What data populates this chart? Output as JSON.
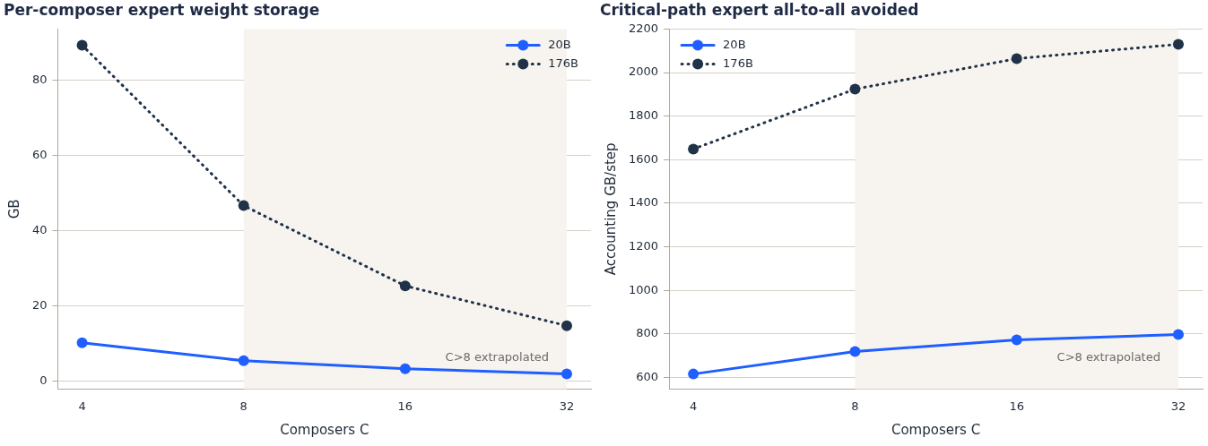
{
  "chart_data": [
    {
      "type": "line",
      "title": "Per-composer expert weight storage",
      "xlabel": "Composers C",
      "ylabel": "GB",
      "categories": [
        "4",
        "8",
        "16",
        "32"
      ],
      "ylim": [
        -2.1,
        93.5
      ],
      "yticks": [
        0,
        20,
        40,
        60,
        80
      ],
      "grid": "y",
      "legend": "top right",
      "marker": "circle",
      "series": [
        {
          "name": "20B",
          "color": "#1f5eff",
          "line_style": "solid",
          "values": [
            10.2,
            5.4,
            3.3,
            1.9
          ]
        },
        {
          "name": "176B",
          "color": "#1f3247",
          "line_style": "dotted",
          "values": [
            89.2,
            46.6,
            25.3,
            14.7
          ]
        }
      ],
      "bands": [
        {
          "axis": "x",
          "from": "8",
          "to": "32",
          "label": "C>8 extrapolated",
          "color": "#f7f3ef"
        }
      ]
    },
    {
      "type": "line",
      "title": "Critical-path expert all-to-all avoided",
      "xlabel": "Composers C",
      "ylabel": "Accounting GB/step",
      "categories": [
        "4",
        "8",
        "16",
        "32"
      ],
      "ylim": [
        547,
        2200
      ],
      "yticks": [
        600,
        800,
        1000,
        1200,
        1400,
        1600,
        1800,
        2000,
        2200
      ],
      "grid": "y",
      "legend": "top left",
      "marker": "circle",
      "series": [
        {
          "name": "20B",
          "color": "#1f5eff",
          "line_style": "solid",
          "values": [
            616,
            719,
            773,
            797
          ]
        },
        {
          "name": "176B",
          "color": "#1f3247",
          "line_style": "dotted",
          "values": [
            1649,
            1924,
            2064,
            2130
          ]
        }
      ],
      "bands": [
        {
          "axis": "x",
          "from": "8",
          "to": "32",
          "label": "C>8 extrapolated",
          "color": "#f7f3ef"
        }
      ]
    }
  ]
}
